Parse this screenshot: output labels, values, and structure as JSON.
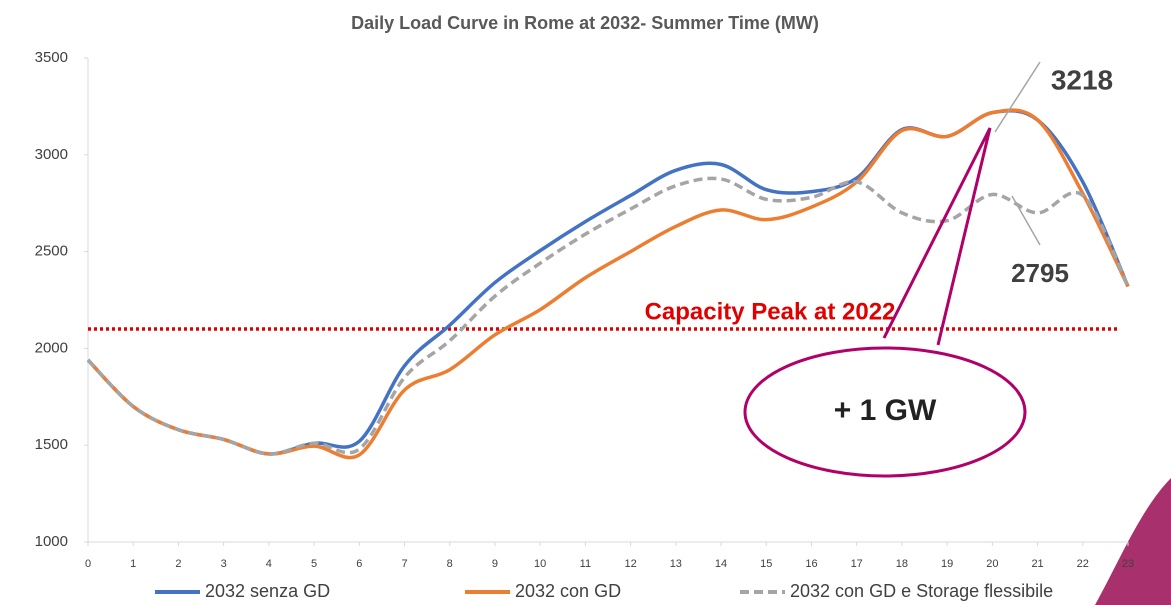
{
  "chart_data": {
    "type": "line",
    "title": "Daily Load Curve in Rome at 2032- Summer Time (MW)",
    "x": [
      0,
      1,
      2,
      3,
      4,
      5,
      6,
      7,
      8,
      9,
      10,
      11,
      12,
      13,
      14,
      15,
      16,
      17,
      18,
      19,
      20,
      21,
      22,
      23
    ],
    "xlim": [
      0,
      23
    ],
    "xticks": [
      0,
      1,
      2,
      3,
      4,
      5,
      6,
      7,
      8,
      9,
      10,
      11,
      12,
      13,
      14,
      15,
      16,
      17,
      18,
      19,
      20,
      21,
      22,
      23
    ],
    "ylim": [
      1000,
      3500
    ],
    "yticks": [
      1000,
      1500,
      2000,
      2500,
      3000,
      3500
    ],
    "series": [
      {
        "name": "2032 senza GD",
        "color": "#4472c4",
        "dash": false,
        "values": [
          1940,
          1700,
          1580,
          1530,
          1455,
          1510,
          1520,
          1910,
          2120,
          2340,
          2505,
          2655,
          2790,
          2920,
          2950,
          2820,
          2810,
          2880,
          3130,
          3095,
          3218,
          3180,
          2860,
          2320
        ]
      },
      {
        "name": "2032 con GD",
        "color": "#ed7d31",
        "dash": false,
        "values": [
          1940,
          1700,
          1580,
          1530,
          1455,
          1495,
          1450,
          1785,
          1890,
          2070,
          2200,
          2365,
          2500,
          2630,
          2715,
          2665,
          2730,
          2860,
          3125,
          3095,
          3218,
          3180,
          2800,
          2320
        ]
      },
      {
        "name": "2032 con GD e Storage flessibile",
        "color": "#a5a5a5",
        "dash": true,
        "values": [
          1940,
          1700,
          1580,
          1530,
          1455,
          1510,
          1480,
          1850,
          2040,
          2270,
          2440,
          2590,
          2720,
          2840,
          2875,
          2770,
          2780,
          2860,
          2700,
          2660,
          2795,
          2700,
          2790,
          2320
        ]
      }
    ],
    "reference_line": {
      "value": 2100,
      "label": "Capacity Peak at 2022",
      "color": "#e00000"
    },
    "annotations": [
      {
        "text": "3218"
      },
      {
        "text": "2795"
      },
      {
        "text": "+ 1 GW"
      }
    ]
  }
}
